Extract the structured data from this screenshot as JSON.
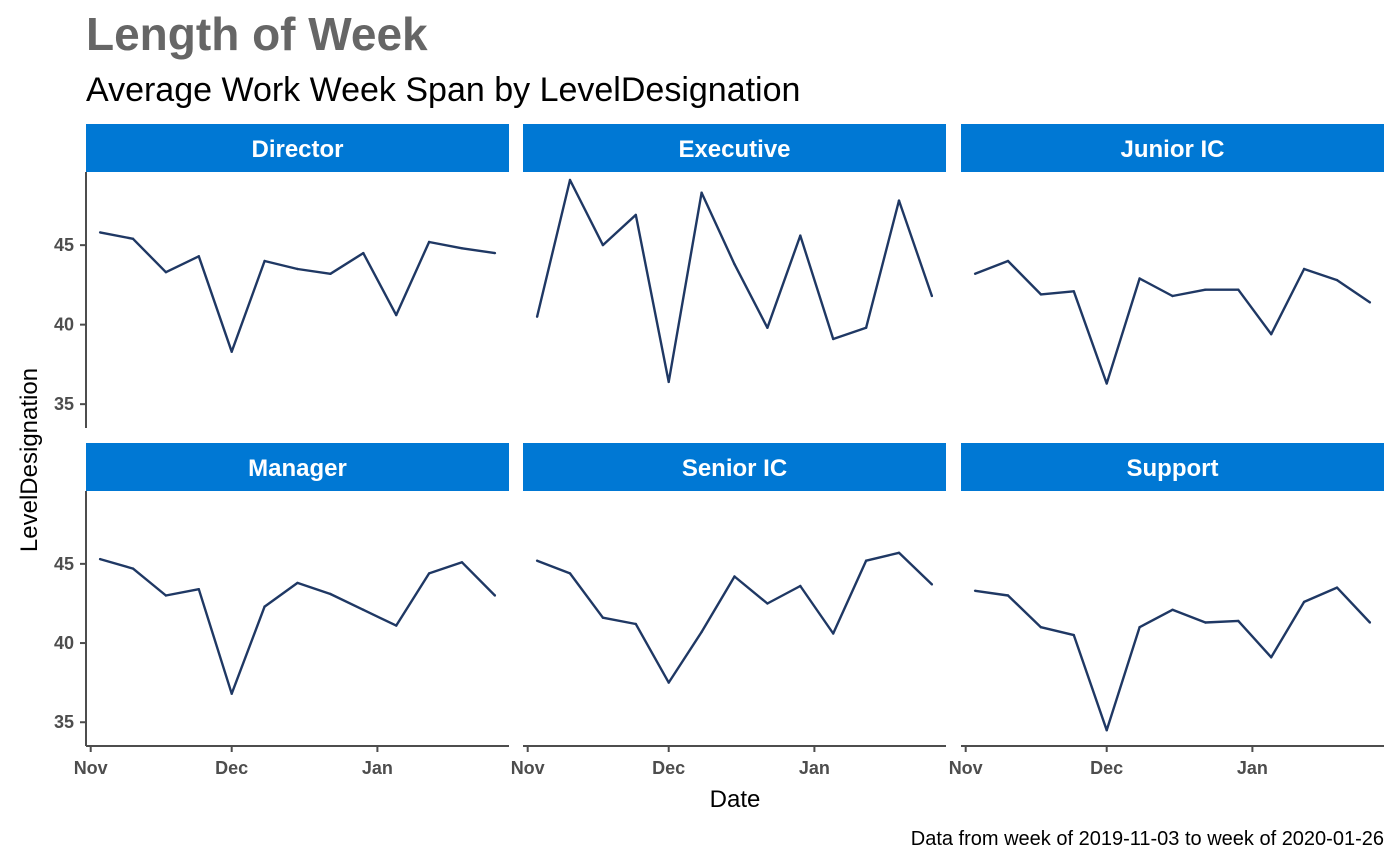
{
  "chart_data": {
    "type": "line",
    "title": "Length of Week",
    "subtitle": "Average Work Week Span by LevelDesignation",
    "xlabel": "Date",
    "ylabel": "LevelDesignation",
    "caption": "Data from week of 2019-11-03 to week of 2020-01-26",
    "x": [
      "2019-11-03",
      "2019-11-10",
      "2019-11-17",
      "2019-11-24",
      "2019-12-01",
      "2019-12-08",
      "2019-12-15",
      "2019-12-22",
      "2019-12-29",
      "2020-01-05",
      "2020-01-12",
      "2020-01-19",
      "2020-01-26"
    ],
    "x_ticks": [
      "Nov",
      "Dec",
      "Jan"
    ],
    "x_tick_dates": [
      "2019-11-01",
      "2019-12-01",
      "2020-01-01"
    ],
    "y_ticks": [
      35,
      40,
      45
    ],
    "ylim": [
      33.5,
      49.6
    ],
    "strip_color": "#0078D4",
    "line_color": "#1F3864",
    "panels": [
      {
        "name": "Director",
        "values": [
          45.8,
          45.4,
          43.3,
          44.3,
          38.3,
          44.0,
          43.5,
          43.2,
          44.5,
          40.6,
          45.2,
          44.8,
          44.5
        ]
      },
      {
        "name": "Executive",
        "values": [
          40.5,
          49.1,
          45.0,
          46.9,
          36.4,
          48.3,
          43.8,
          39.8,
          45.6,
          39.1,
          39.8,
          47.8,
          41.8
        ]
      },
      {
        "name": "Junior IC",
        "values": [
          43.2,
          44.0,
          41.9,
          42.1,
          36.3,
          42.9,
          41.8,
          42.2,
          42.2,
          39.4,
          43.5,
          42.8,
          41.4
        ]
      },
      {
        "name": "Manager",
        "values": [
          45.3,
          44.7,
          43.0,
          43.4,
          36.8,
          42.3,
          43.8,
          43.1,
          42.1,
          41.1,
          44.4,
          45.1,
          43.0
        ]
      },
      {
        "name": "Senior IC",
        "values": [
          45.2,
          44.4,
          41.6,
          41.2,
          37.5,
          40.7,
          44.2,
          42.5,
          43.6,
          40.6,
          45.2,
          45.7,
          43.7
        ]
      },
      {
        "name": "Support",
        "values": [
          43.3,
          43.0,
          41.0,
          40.5,
          34.5,
          41.0,
          42.1,
          41.3,
          41.4,
          39.1,
          42.6,
          43.5,
          41.3
        ]
      }
    ]
  }
}
